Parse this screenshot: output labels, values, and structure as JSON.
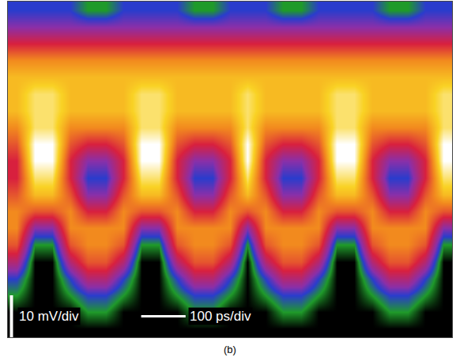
{
  "chart_data": {
    "type": "heatmap",
    "x": [
      20,
      60,
      100,
      140,
      180,
      220,
      260,
      300,
      340,
      380,
      420,
      460,
      500,
      540,
      580,
      620,
      660,
      700,
      740,
      780,
      820,
      860,
      900,
      940,
      980
    ],
    "y": [
      -38,
      -34,
      -30,
      -26,
      -22,
      -18,
      -14,
      -10,
      -6,
      -2,
      2,
      6,
      10,
      14,
      18,
      22,
      26,
      30,
      34,
      38
    ],
    "z": [
      [
        0,
        0,
        0,
        0,
        0,
        0,
        0,
        0,
        0,
        0,
        0,
        0,
        0,
        0,
        0,
        0,
        0,
        0,
        0,
        0,
        0,
        0,
        0,
        0,
        0
      ],
      [
        0,
        0,
        0,
        0,
        1,
        1,
        0,
        0,
        0,
        0,
        1,
        1,
        0,
        0,
        0,
        1,
        1,
        0,
        0,
        0,
        0,
        1,
        1,
        0,
        0
      ],
      [
        1,
        0,
        0,
        1,
        2,
        2,
        1,
        0,
        0,
        1,
        2,
        2,
        1,
        0,
        1,
        2,
        2,
        1,
        0,
        0,
        1,
        2,
        2,
        1,
        0
      ],
      [
        2,
        0,
        0,
        2,
        4,
        4,
        2,
        0,
        0,
        2,
        4,
        4,
        2,
        0,
        2,
        4,
        4,
        2,
        0,
        0,
        2,
        4,
        4,
        2,
        0
      ],
      [
        4,
        0,
        0,
        4,
        6,
        6,
        4,
        0,
        0,
        4,
        6,
        6,
        4,
        0,
        4,
        6,
        6,
        4,
        0,
        0,
        4,
        6,
        6,
        4,
        0
      ],
      [
        6,
        1,
        1,
        6,
        7,
        7,
        6,
        1,
        1,
        6,
        7,
        7,
        6,
        1,
        6,
        7,
        7,
        6,
        1,
        1,
        6,
        7,
        7,
        6,
        1
      ],
      [
        7,
        3,
        3,
        7,
        7,
        7,
        7,
        3,
        3,
        7,
        7,
        7,
        7,
        3,
        7,
        7,
        7,
        7,
        3,
        3,
        7,
        7,
        7,
        7,
        3
      ],
      [
        7,
        6,
        6,
        7,
        5,
        5,
        7,
        6,
        6,
        7,
        5,
        5,
        7,
        6,
        7,
        5,
        5,
        7,
        6,
        6,
        7,
        5,
        5,
        7,
        6
      ],
      [
        6,
        8,
        8,
        6,
        3,
        3,
        6,
        8,
        8,
        6,
        3,
        3,
        6,
        8,
        6,
        3,
        3,
        6,
        8,
        8,
        6,
        3,
        3,
        6,
        8
      ],
      [
        5,
        9,
        9,
        5,
        2,
        2,
        5,
        9,
        9,
        5,
        2,
        2,
        5,
        9,
        5,
        2,
        2,
        5,
        9,
        9,
        5,
        2,
        2,
        5,
        9
      ],
      [
        5,
        10,
        10,
        5,
        3,
        3,
        5,
        10,
        10,
        5,
        3,
        3,
        5,
        10,
        5,
        3,
        3,
        5,
        10,
        10,
        5,
        3,
        3,
        5,
        10
      ],
      [
        6,
        10,
        10,
        6,
        5,
        5,
        6,
        10,
        10,
        6,
        5,
        5,
        6,
        10,
        6,
        5,
        5,
        6,
        10,
        10,
        6,
        5,
        5,
        6,
        10
      ],
      [
        7,
        9,
        9,
        7,
        7,
        7,
        7,
        9,
        9,
        7,
        7,
        7,
        7,
        9,
        7,
        7,
        7,
        7,
        9,
        9,
        7,
        7,
        7,
        7,
        9
      ],
      [
        8,
        9,
        9,
        8,
        8,
        8,
        8,
        9,
        9,
        8,
        8,
        8,
        8,
        9,
        8,
        8,
        8,
        8,
        9,
        9,
        8,
        8,
        8,
        8,
        9
      ],
      [
        8,
        9,
        9,
        8,
        8,
        8,
        8,
        9,
        9,
        8,
        8,
        8,
        8,
        9,
        8,
        8,
        8,
        8,
        9,
        9,
        8,
        8,
        8,
        8,
        9
      ],
      [
        8,
        8,
        8,
        8,
        8,
        8,
        8,
        8,
        8,
        8,
        8,
        8,
        8,
        8,
        8,
        8,
        8,
        8,
        8,
        8,
        8,
        8,
        8,
        8,
        8
      ],
      [
        7,
        7,
        7,
        7,
        7,
        7,
        7,
        7,
        7,
        7,
        7,
        7,
        7,
        7,
        7,
        7,
        7,
        7,
        7,
        7,
        7,
        7,
        7,
        7,
        7
      ],
      [
        5,
        5,
        5,
        5,
        5,
        5,
        5,
        5,
        5,
        5,
        5,
        5,
        5,
        5,
        5,
        5,
        5,
        5,
        5,
        5,
        5,
        5,
        5,
        5,
        5
      ],
      [
        3,
        3,
        3,
        3,
        3,
        3,
        3,
        3,
        3,
        3,
        3,
        3,
        3,
        3,
        3,
        3,
        3,
        3,
        3,
        3,
        3,
        3,
        3,
        3,
        3
      ],
      [
        2,
        2,
        2,
        2,
        1,
        1,
        2,
        2,
        2,
        2,
        1,
        1,
        2,
        2,
        2,
        1,
        1,
        2,
        2,
        2,
        2,
        1,
        1,
        2,
        2
      ]
    ],
    "zlim": [
      0,
      10
    ],
    "xlim": [
      0,
      1000
    ],
    "ylim": [
      -40,
      40
    ],
    "xticks": [
      0,
      100,
      200,
      300,
      400,
      500,
      600,
      700,
      800,
      900,
      1000
    ],
    "yticks": [
      -40,
      -30,
      -20,
      -10,
      0,
      10,
      20,
      30,
      40
    ],
    "grid": true,
    "tick_labels": false,
    "annotations": [
      "10 mV/div",
      "100 ps/div"
    ],
    "caption": "(b)"
  }
}
